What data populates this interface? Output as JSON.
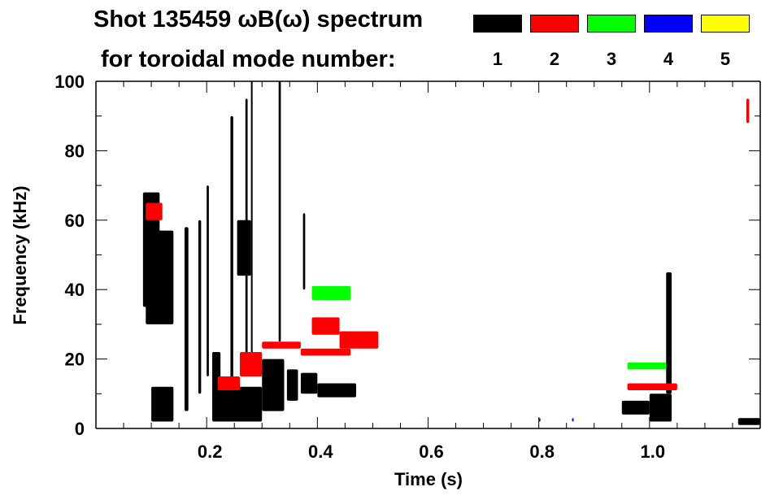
{
  "chart_data": {
    "type": "heatmap",
    "title": "Shot 135459 ωB(ω) spectrum",
    "subtitle": "for toroidal mode number:",
    "xlabel": "Time (s)",
    "ylabel": "Frequency (kHz)",
    "xlim": [
      0,
      1.2
    ],
    "ylim": [
      0,
      100
    ],
    "xticks": [
      0.2,
      0.4,
      0.6,
      0.8,
      1.0
    ],
    "xtick_labels": [
      "0.2",
      "0.4",
      "0.6",
      "0.8",
      "1.0"
    ],
    "yticks": [
      0,
      20,
      40,
      60,
      80,
      100
    ],
    "ytick_labels": [
      "0",
      "20",
      "40",
      "60",
      "80",
      "100"
    ],
    "legend": [
      {
        "mode": "1",
        "color": "#000000"
      },
      {
        "mode": "2",
        "color": "#ff0000"
      },
      {
        "mode": "3",
        "color": "#00ff00"
      },
      {
        "mode": "4",
        "color": "#0000ff"
      },
      {
        "mode": "5",
        "color": "#ffff00"
      }
    ],
    "regions": [
      {
        "mode": 1,
        "t": [
          0.085,
          0.115
        ],
        "f": [
          35,
          68
        ]
      },
      {
        "mode": 1,
        "t": [
          0.09,
          0.14
        ],
        "f": [
          30,
          57
        ]
      },
      {
        "mode": 1,
        "t": [
          0.1,
          0.14
        ],
        "f": [
          2,
          12
        ]
      },
      {
        "mode": 1,
        "t": [
          0.21,
          0.3
        ],
        "f": [
          2,
          12
        ]
      },
      {
        "mode": 1,
        "t": [
          0.21,
          0.225
        ],
        "f": [
          5,
          22
        ]
      },
      {
        "mode": 1,
        "t": [
          0.3,
          0.34
        ],
        "f": [
          5,
          20
        ]
      },
      {
        "mode": 1,
        "t": [
          0.345,
          0.365
        ],
        "f": [
          8,
          17
        ]
      },
      {
        "mode": 1,
        "t": [
          0.37,
          0.4
        ],
        "f": [
          10,
          16
        ]
      },
      {
        "mode": 1,
        "t": [
          0.4,
          0.47
        ],
        "f": [
          9,
          13
        ]
      },
      {
        "mode": 1,
        "t": [
          0.255,
          0.28
        ],
        "f": [
          44,
          60
        ]
      },
      {
        "mode": 1,
        "t": [
          0.16,
          0.167
        ],
        "f": [
          5,
          58
        ]
      },
      {
        "mode": 1,
        "t": [
          0.185,
          0.19
        ],
        "f": [
          10,
          60
        ]
      },
      {
        "mode": 1,
        "t": [
          0.2,
          0.204
        ],
        "f": [
          15,
          70
        ]
      },
      {
        "mode": 1,
        "t": [
          0.243,
          0.248
        ],
        "f": [
          10,
          90
        ]
      },
      {
        "mode": 1,
        "t": [
          0.27,
          0.274
        ],
        "f": [
          20,
          95
        ]
      },
      {
        "mode": 1,
        "t": [
          0.28,
          0.283
        ],
        "f": [
          20,
          100
        ]
      },
      {
        "mode": 1,
        "t": [
          0.33,
          0.334
        ],
        "f": [
          25,
          100
        ]
      },
      {
        "mode": 1,
        "t": [
          0.374,
          0.378
        ],
        "f": [
          40,
          62
        ]
      },
      {
        "mode": 1,
        "t": [
          0.95,
          1.0
        ],
        "f": [
          4,
          8
        ]
      },
      {
        "mode": 1,
        "t": [
          1.0,
          1.04
        ],
        "f": [
          2,
          10
        ]
      },
      {
        "mode": 1,
        "t": [
          1.03,
          1.04
        ],
        "f": [
          10,
          45
        ]
      },
      {
        "mode": 1,
        "t": [
          1.16,
          1.2
        ],
        "f": [
          1,
          3
        ]
      },
      {
        "mode": 2,
        "t": [
          0.09,
          0.12
        ],
        "f": [
          60,
          65
        ]
      },
      {
        "mode": 2,
        "t": [
          0.22,
          0.26
        ],
        "f": [
          11,
          15
        ]
      },
      {
        "mode": 2,
        "t": [
          0.26,
          0.3
        ],
        "f": [
          15,
          22
        ]
      },
      {
        "mode": 2,
        "t": [
          0.3,
          0.37
        ],
        "f": [
          23,
          25
        ]
      },
      {
        "mode": 2,
        "t": [
          0.37,
          0.46
        ],
        "f": [
          21,
          23
        ]
      },
      {
        "mode": 2,
        "t": [
          0.39,
          0.44
        ],
        "f": [
          27,
          32
        ]
      },
      {
        "mode": 2,
        "t": [
          0.44,
          0.51
        ],
        "f": [
          23,
          28
        ]
      },
      {
        "mode": 2,
        "t": [
          0.96,
          1.05
        ],
        "f": [
          11,
          13
        ]
      },
      {
        "mode": 2,
        "t": [
          1.175,
          1.18
        ],
        "f": [
          88,
          95
        ]
      },
      {
        "mode": 3,
        "t": [
          0.39,
          0.46
        ],
        "f": [
          37,
          41
        ]
      },
      {
        "mode": 3,
        "t": [
          0.96,
          1.03
        ],
        "f": [
          17,
          19
        ]
      },
      {
        "mode": 4,
        "t": [
          0.8,
          0.803
        ],
        "f": [
          2,
          3
        ]
      },
      {
        "mode": 4,
        "t": [
          0.86,
          0.863
        ],
        "f": [
          2,
          3
        ]
      }
    ]
  }
}
